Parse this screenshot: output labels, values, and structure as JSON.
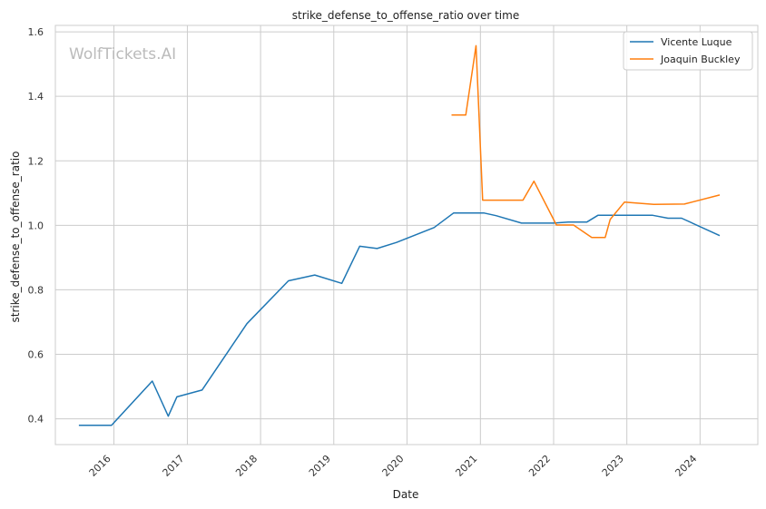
{
  "chart_data": {
    "type": "line",
    "title": "strike_defense_to_offense_ratio over time",
    "xlabel": "Date",
    "ylabel": "strike_defense_to_offense_ratio",
    "watermark": "WolfTickets.AI",
    "xlim": [
      "2015-03-15",
      "2024-10-15"
    ],
    "ylim": [
      0.32,
      1.62
    ],
    "x_ticks": [
      "2016",
      "2017",
      "2018",
      "2019",
      "2020",
      "2021",
      "2022",
      "2023",
      "2024"
    ],
    "y_ticks": [
      "0.4",
      "0.6",
      "0.8",
      "1.0",
      "1.2",
      "1.4",
      "1.6"
    ],
    "grid": true,
    "legend_position": "top-right",
    "series": [
      {
        "name": "Vicente Luque",
        "color": "#1f77b4",
        "points": [
          [
            "2015-07-10",
            0.38
          ],
          [
            "2015-12-20",
            0.38
          ],
          [
            "2016-07-10",
            0.517
          ],
          [
            "2016-09-28",
            0.408
          ],
          [
            "2016-11-10",
            0.468
          ],
          [
            "2017-03-15",
            0.489
          ],
          [
            "2017-10-25",
            0.695
          ],
          [
            "2018-05-20",
            0.828
          ],
          [
            "2018-09-28",
            0.846
          ],
          [
            "2019-02-10",
            0.82
          ],
          [
            "2019-05-10",
            0.935
          ],
          [
            "2019-08-05",
            0.928
          ],
          [
            "2019-11-10",
            0.947
          ],
          [
            "2020-05-15",
            0.993
          ],
          [
            "2020-08-20",
            1.038
          ],
          [
            "2021-01-20",
            1.038
          ],
          [
            "2021-03-20",
            1.03
          ],
          [
            "2021-07-25",
            1.007
          ],
          [
            "2022-01-01",
            1.007
          ],
          [
            "2022-03-15",
            1.01
          ],
          [
            "2022-06-15",
            1.01
          ],
          [
            "2022-08-10",
            1.031
          ],
          [
            "2023-05-10",
            1.031
          ],
          [
            "2023-07-25",
            1.022
          ],
          [
            "2023-10-01",
            1.022
          ],
          [
            "2024-04-08",
            0.968
          ]
        ]
      },
      {
        "name": "Joaquin Buckley",
        "color": "#ff7f0e",
        "points": [
          [
            "2020-08-10",
            1.342
          ],
          [
            "2020-10-20",
            1.342
          ],
          [
            "2020-12-10",
            1.557
          ],
          [
            "2021-01-12",
            1.078
          ],
          [
            "2021-08-01",
            1.078
          ],
          [
            "2021-09-25",
            1.137
          ],
          [
            "2022-01-15",
            1.001
          ],
          [
            "2022-04-10",
            1.001
          ],
          [
            "2022-07-10",
            0.962
          ],
          [
            "2022-09-15",
            0.962
          ],
          [
            "2022-10-10",
            1.018
          ],
          [
            "2022-12-20",
            1.072
          ],
          [
            "2023-05-15",
            1.065
          ],
          [
            "2023-10-15",
            1.066
          ],
          [
            "2024-04-08",
            1.094
          ]
        ]
      }
    ]
  }
}
